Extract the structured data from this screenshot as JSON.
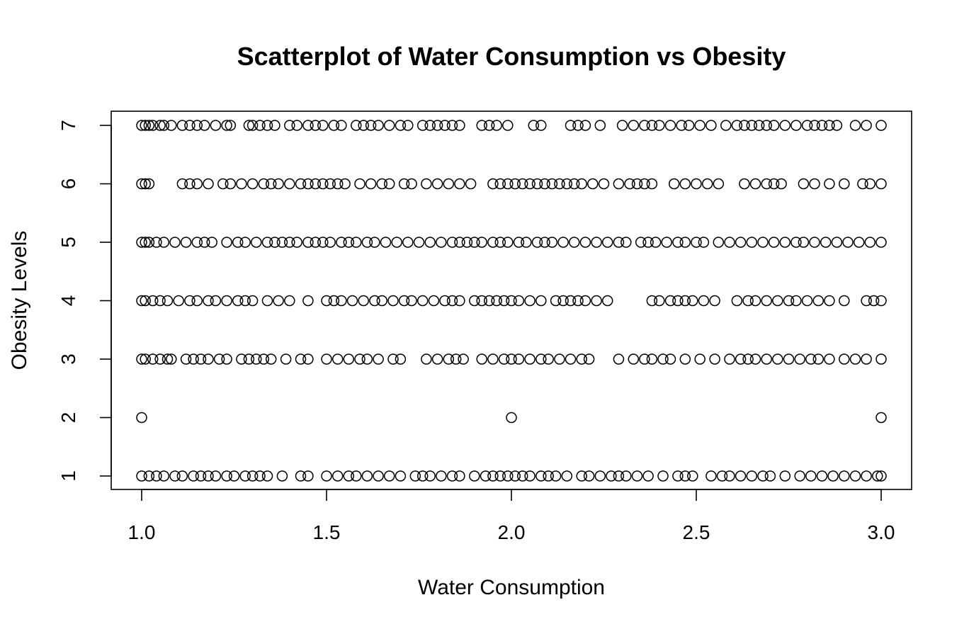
{
  "chart_data": {
    "type": "scatter",
    "title": "Scatterplot of Water Consumption vs Obesity",
    "xlabel": "Water Consumption",
    "ylabel": "Obesity Levels",
    "xlim": [
      1.0,
      3.0
    ],
    "ylim": [
      1,
      7
    ],
    "x_ticks": [
      "1.0",
      "1.5",
      "2.0",
      "2.5",
      "3.0"
    ],
    "y_ticks": [
      "1",
      "2",
      "3",
      "4",
      "5",
      "6",
      "7"
    ],
    "grid": false,
    "marker": "open-circle",
    "series": [
      {
        "points": [
          {
            "y": 7,
            "x": [
              1.0,
              1.01,
              1.02,
              1.03,
              1.05,
              1.06,
              1.08,
              1.11,
              1.13,
              1.15,
              1.17,
              1.2,
              1.23,
              1.24,
              1.29,
              1.3,
              1.32,
              1.34,
              1.36,
              1.4,
              1.42,
              1.45,
              1.47,
              1.49,
              1.52,
              1.54,
              1.58,
              1.6,
              1.62,
              1.64,
              1.67,
              1.7,
              1.72,
              1.76,
              1.78,
              1.8,
              1.82,
              1.84,
              1.86,
              1.92,
              1.94,
              1.96,
              1.99,
              2.06,
              2.08,
              2.16,
              2.18,
              2.2,
              2.24,
              2.3,
              2.33,
              2.36,
              2.38,
              2.4,
              2.43,
              2.46,
              2.48,
              2.51,
              2.54,
              2.58,
              2.61,
              2.63,
              2.65,
              2.67,
              2.69,
              2.71,
              2.74,
              2.77,
              2.8,
              2.82,
              2.84,
              2.86,
              2.88,
              2.93,
              2.96,
              3.0
            ]
          },
          {
            "y": 6,
            "x": [
              1.0,
              1.01,
              1.02,
              1.11,
              1.13,
              1.15,
              1.18,
              1.22,
              1.24,
              1.27,
              1.3,
              1.33,
              1.35,
              1.37,
              1.4,
              1.43,
              1.45,
              1.47,
              1.49,
              1.51,
              1.53,
              1.55,
              1.59,
              1.62,
              1.65,
              1.67,
              1.71,
              1.73,
              1.77,
              1.8,
              1.83,
              1.86,
              1.89,
              1.95,
              1.97,
              1.99,
              2.01,
              2.03,
              2.05,
              2.07,
              2.09,
              2.11,
              2.13,
              2.15,
              2.17,
              2.19,
              2.22,
              2.25,
              2.29,
              2.32,
              2.34,
              2.36,
              2.38,
              2.44,
              2.47,
              2.5,
              2.53,
              2.56,
              2.63,
              2.66,
              2.69,
              2.71,
              2.73,
              2.79,
              2.82,
              2.86,
              2.9,
              2.95,
              2.97,
              3.0
            ]
          },
          {
            "y": 5,
            "x": [
              1.0,
              1.01,
              1.02,
              1.04,
              1.06,
              1.09,
              1.12,
              1.15,
              1.17,
              1.19,
              1.23,
              1.26,
              1.28,
              1.31,
              1.34,
              1.36,
              1.38,
              1.4,
              1.42,
              1.45,
              1.47,
              1.49,
              1.51,
              1.54,
              1.56,
              1.58,
              1.61,
              1.63,
              1.66,
              1.69,
              1.72,
              1.75,
              1.78,
              1.81,
              1.84,
              1.86,
              1.88,
              1.9,
              1.92,
              1.95,
              1.97,
              1.99,
              2.02,
              2.04,
              2.07,
              2.09,
              2.11,
              2.14,
              2.17,
              2.2,
              2.23,
              2.26,
              2.29,
              2.31,
              2.35,
              2.37,
              2.39,
              2.42,
              2.45,
              2.47,
              2.5,
              2.52,
              2.56,
              2.59,
              2.62,
              2.65,
              2.68,
              2.71,
              2.74,
              2.77,
              2.79,
              2.82,
              2.85,
              2.88,
              2.91,
              2.94,
              2.97,
              3.0
            ]
          },
          {
            "y": 4,
            "x": [
              1.0,
              1.01,
              1.03,
              1.05,
              1.07,
              1.1,
              1.13,
              1.15,
              1.18,
              1.2,
              1.23,
              1.26,
              1.28,
              1.3,
              1.34,
              1.37,
              1.4,
              1.45,
              1.5,
              1.52,
              1.54,
              1.57,
              1.6,
              1.63,
              1.65,
              1.68,
              1.71,
              1.73,
              1.76,
              1.79,
              1.82,
              1.84,
              1.86,
              1.9,
              1.92,
              1.94,
              1.96,
              1.98,
              2.0,
              2.02,
              2.05,
              2.08,
              2.12,
              2.14,
              2.16,
              2.18,
              2.2,
              2.23,
              2.26,
              2.38,
              2.4,
              2.43,
              2.45,
              2.47,
              2.49,
              2.52,
              2.55,
              2.61,
              2.64,
              2.66,
              2.69,
              2.72,
              2.75,
              2.77,
              2.8,
              2.83,
              2.86,
              2.9,
              2.96,
              2.98,
              3.0
            ]
          },
          {
            "y": 3,
            "x": [
              1.0,
              1.01,
              1.03,
              1.05,
              1.07,
              1.08,
              1.12,
              1.14,
              1.16,
              1.18,
              1.21,
              1.23,
              1.27,
              1.29,
              1.31,
              1.33,
              1.35,
              1.39,
              1.43,
              1.45,
              1.5,
              1.53,
              1.56,
              1.59,
              1.61,
              1.64,
              1.68,
              1.7,
              1.77,
              1.8,
              1.83,
              1.85,
              1.87,
              1.92,
              1.95,
              1.98,
              2.0,
              2.02,
              2.05,
              2.08,
              2.1,
              2.13,
              2.16,
              2.19,
              2.21,
              2.29,
              2.33,
              2.36,
              2.38,
              2.41,
              2.43,
              2.47,
              2.51,
              2.55,
              2.59,
              2.62,
              2.64,
              2.66,
              2.69,
              2.72,
              2.75,
              2.78,
              2.81,
              2.83,
              2.86,
              2.9,
              2.93,
              2.96,
              3.0
            ]
          },
          {
            "y": 2,
            "x": [
              1.0,
              2.0,
              3.0
            ]
          },
          {
            "y": 1,
            "x": [
              1.0,
              1.02,
              1.04,
              1.06,
              1.09,
              1.11,
              1.14,
              1.16,
              1.18,
              1.2,
              1.23,
              1.25,
              1.28,
              1.3,
              1.32,
              1.34,
              1.38,
              1.43,
              1.45,
              1.5,
              1.53,
              1.56,
              1.58,
              1.61,
              1.64,
              1.67,
              1.7,
              1.74,
              1.76,
              1.78,
              1.81,
              1.84,
              1.86,
              1.9,
              1.93,
              1.95,
              1.97,
              1.99,
              2.01,
              2.03,
              2.05,
              2.08,
              2.1,
              2.12,
              2.15,
              2.19,
              2.21,
              2.24,
              2.27,
              2.29,
              2.31,
              2.34,
              2.37,
              2.41,
              2.45,
              2.47,
              2.49,
              2.54,
              2.57,
              2.59,
              2.62,
              2.65,
              2.68,
              2.7,
              2.74,
              2.78,
              2.81,
              2.84,
              2.87,
              2.9,
              2.93,
              2.96,
              2.99,
              3.0
            ]
          }
        ]
      }
    ]
  }
}
